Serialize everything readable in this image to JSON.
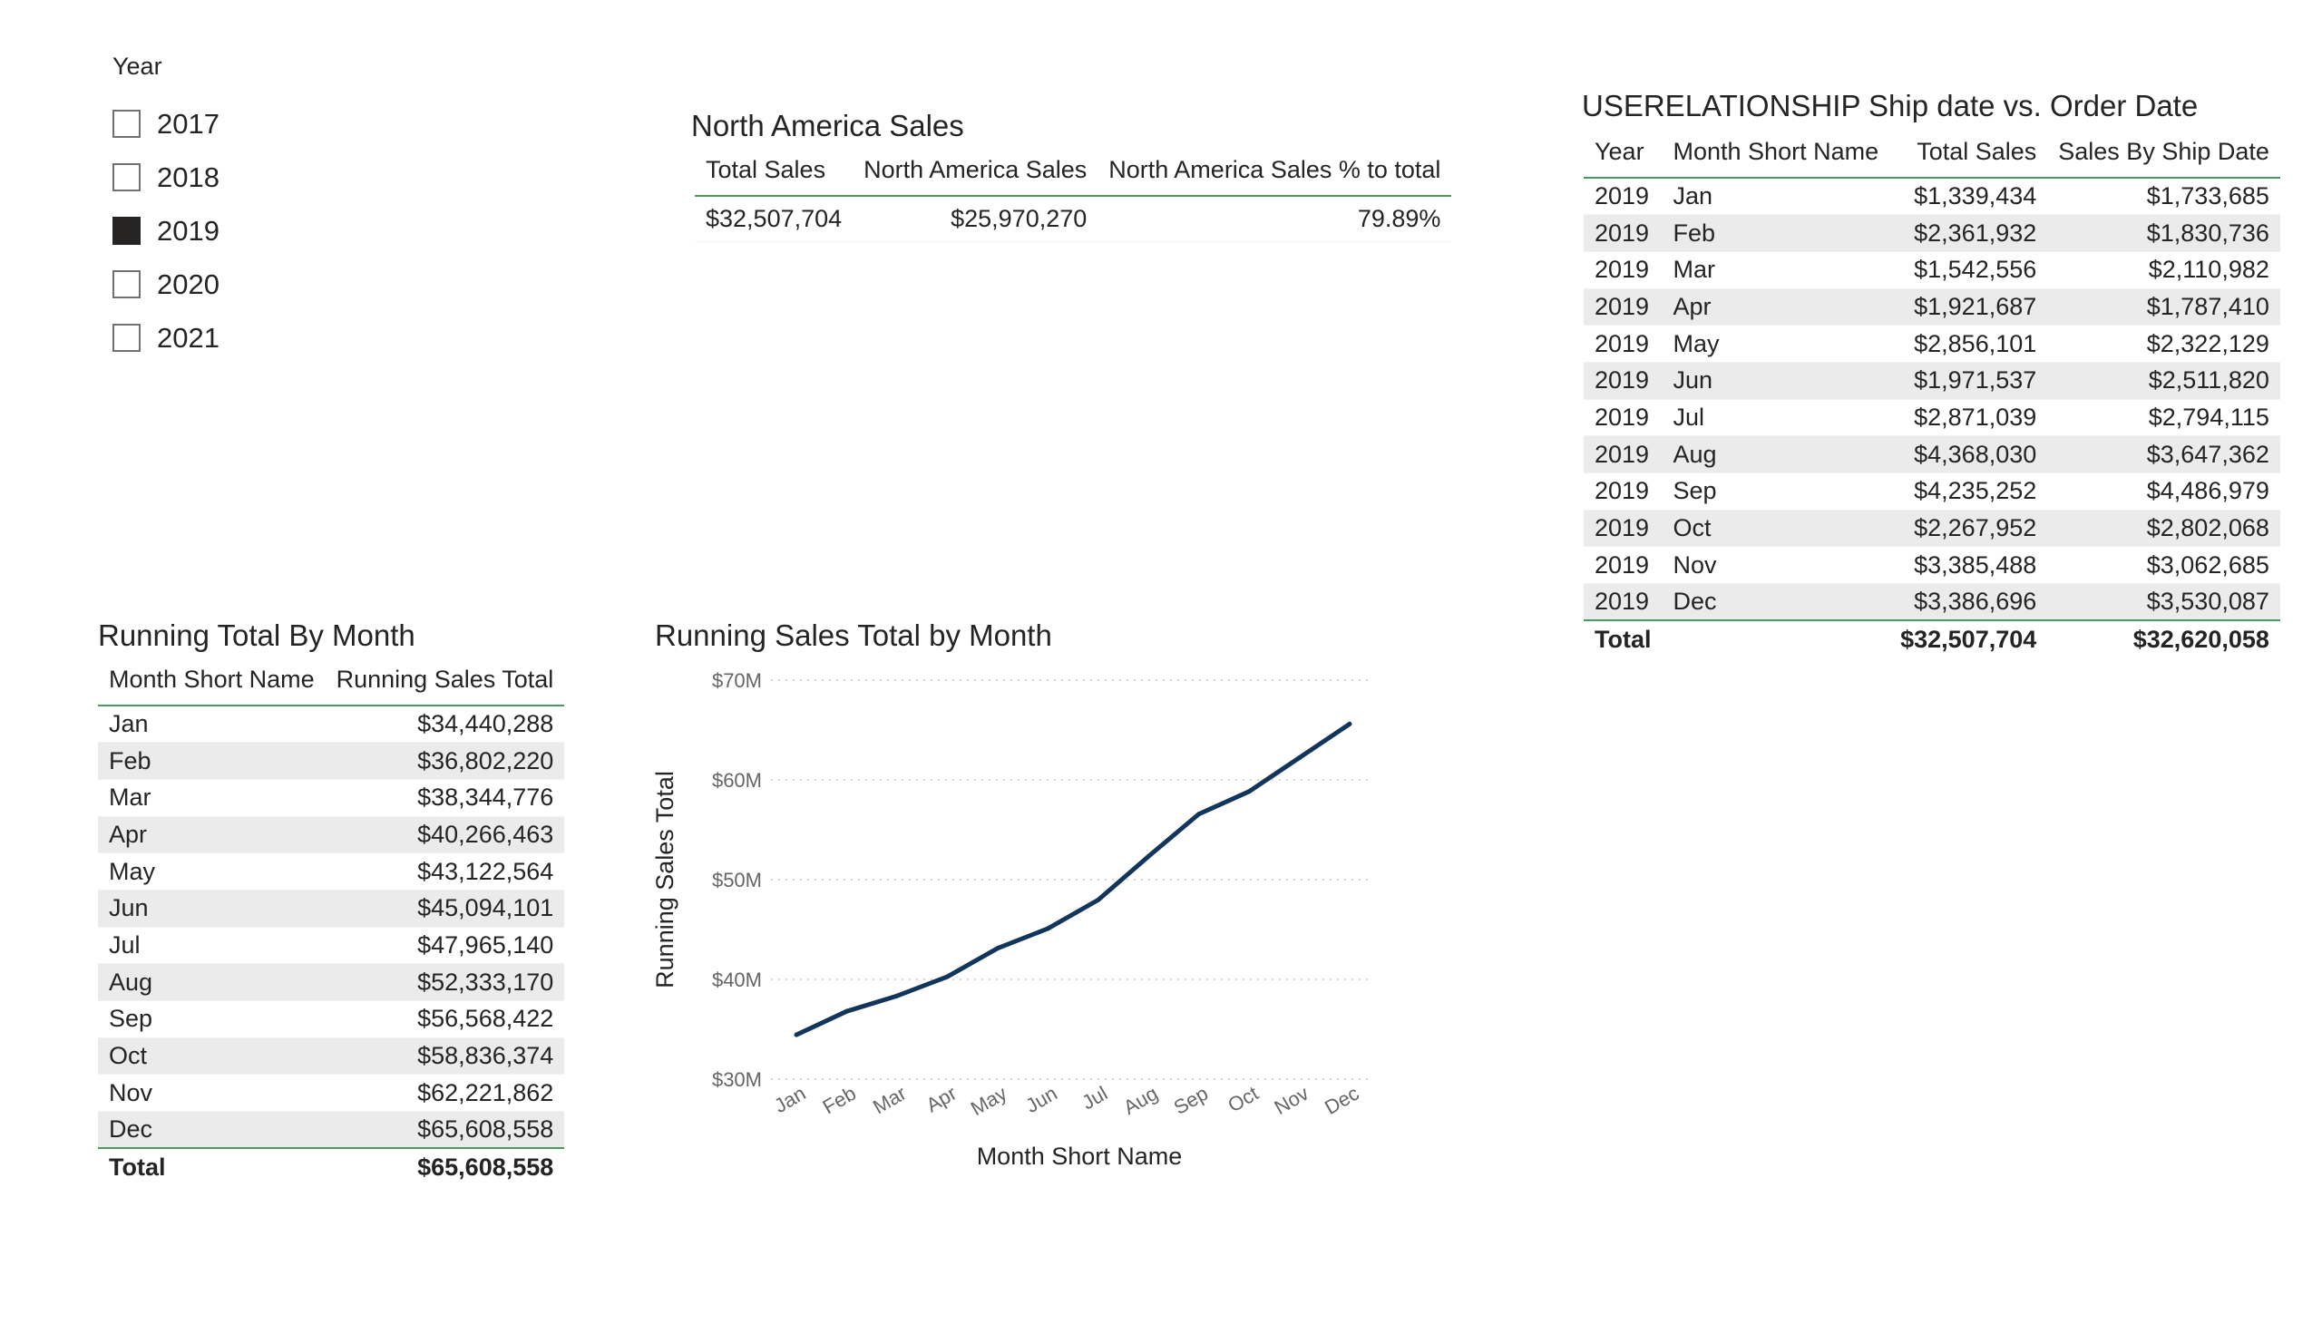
{
  "slicer": {
    "title": "Year",
    "items": [
      {
        "label": "2017",
        "checked": false
      },
      {
        "label": "2018",
        "checked": false
      },
      {
        "label": "2019",
        "checked": true
      },
      {
        "label": "2020",
        "checked": false
      },
      {
        "label": "2021",
        "checked": false
      }
    ]
  },
  "na_table": {
    "title": "North America Sales",
    "headers": [
      "Total Sales",
      "North America Sales",
      "North America Sales % to total"
    ],
    "row": [
      "$32,507,704",
      "$25,970,270",
      "79.89%"
    ]
  },
  "ship_table": {
    "title": "USERELATIONSHIP Ship date vs. Order Date",
    "headers": [
      "Year",
      "Month Short Name",
      "Total Sales",
      "Sales By Ship Date"
    ],
    "rows": [
      [
        "2019",
        "Jan",
        "$1,339,434",
        "$1,733,685"
      ],
      [
        "2019",
        "Feb",
        "$2,361,932",
        "$1,830,736"
      ],
      [
        "2019",
        "Mar",
        "$1,542,556",
        "$2,110,982"
      ],
      [
        "2019",
        "Apr",
        "$1,921,687",
        "$1,787,410"
      ],
      [
        "2019",
        "May",
        "$2,856,101",
        "$2,322,129"
      ],
      [
        "2019",
        "Jun",
        "$1,971,537",
        "$2,511,820"
      ],
      [
        "2019",
        "Jul",
        "$2,871,039",
        "$2,794,115"
      ],
      [
        "2019",
        "Aug",
        "$4,368,030",
        "$3,647,362"
      ],
      [
        "2019",
        "Sep",
        "$4,235,252",
        "$4,486,979"
      ],
      [
        "2019",
        "Oct",
        "$2,267,952",
        "$2,802,068"
      ],
      [
        "2019",
        "Nov",
        "$3,385,488",
        "$3,062,685"
      ],
      [
        "2019",
        "Dec",
        "$3,386,696",
        "$3,530,087"
      ]
    ],
    "total_label": "Total",
    "total_sales": "$32,507,704",
    "total_ship": "$32,620,058"
  },
  "running_table": {
    "title": "Running Total By Month",
    "headers": [
      "Month Short Name",
      "Running Sales Total"
    ],
    "rows": [
      [
        "Jan",
        "$34,440,288"
      ],
      [
        "Feb",
        "$36,802,220"
      ],
      [
        "Mar",
        "$38,344,776"
      ],
      [
        "Apr",
        "$40,266,463"
      ],
      [
        "May",
        "$43,122,564"
      ],
      [
        "Jun",
        "$45,094,101"
      ],
      [
        "Jul",
        "$47,965,140"
      ],
      [
        "Aug",
        "$52,333,170"
      ],
      [
        "Sep",
        "$56,568,422"
      ],
      [
        "Oct",
        "$58,836,374"
      ],
      [
        "Nov",
        "$62,221,862"
      ],
      [
        "Dec",
        "$65,608,558"
      ]
    ],
    "total_label": "Total",
    "total_value": "$65,608,558"
  },
  "chart_data": {
    "type": "line",
    "title": "Running Sales Total by Month",
    "xlabel": "Month Short Name",
    "ylabel": "Running Sales Total",
    "categories": [
      "Jan",
      "Feb",
      "Mar",
      "Apr",
      "May",
      "Jun",
      "Jul",
      "Aug",
      "Sep",
      "Oct",
      "Nov",
      "Dec"
    ],
    "series": [
      {
        "values": [
          34440288,
          36802220,
          38344776,
          40266463,
          43122564,
          45094101,
          47965140,
          52333170,
          56568422,
          58836374,
          62221862,
          65608558
        ],
        "color": "#12355b"
      }
    ],
    "ylim": [
      30000000,
      70000000
    ],
    "yticks": [
      {
        "value": 70000000,
        "label": "$70M"
      },
      {
        "value": 60000000,
        "label": "$60M"
      },
      {
        "value": 50000000,
        "label": "$50M"
      },
      {
        "value": 40000000,
        "label": "$40M"
      },
      {
        "value": 30000000,
        "label": "$30M"
      }
    ],
    "grid": true,
    "legend": "none"
  }
}
